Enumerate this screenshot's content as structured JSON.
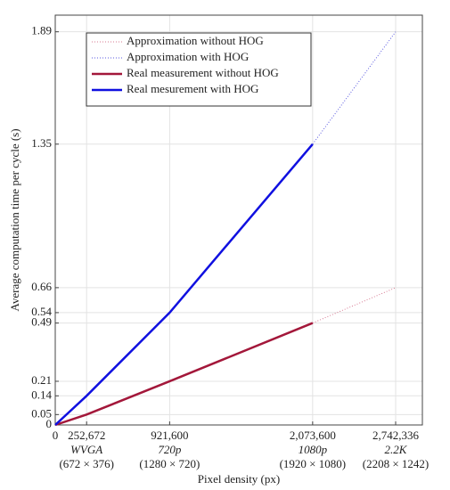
{
  "chart_data": {
    "type": "line",
    "x_label": "Pixel density (px)",
    "y_label": "Average computation time per cycle (s)",
    "xlim": [
      0,
      2957700
    ],
    "ylim": [
      0,
      1.97
    ],
    "xticks": [
      0,
      {
        "value": 252672,
        "label": "252,672",
        "name": "WVGA",
        "size": "(672 × 376)"
      },
      {
        "value": 921600,
        "label": "921,600",
        "name": "720p",
        "size": "(1280 × 720)"
      },
      {
        "value": 2073600,
        "label": "2,073,600",
        "name": "1080p",
        "size": "(1920 × 1080)"
      },
      {
        "value": 2742336,
        "label": "2,742,336",
        "name": "2.2K",
        "size": "(2208 × 1242)"
      }
    ],
    "yticks": [
      0,
      0.05,
      0.14,
      0.21,
      0.49,
      0.54,
      0.66,
      1.35,
      1.89
    ],
    "grid": true,
    "legend": "upper-left",
    "series": [
      {
        "name": "Approximation without HOG",
        "color": "#d77a92",
        "style": "dotted",
        "x": [
          2073600,
          2742336
        ],
        "values": [
          0.49,
          0.66
        ]
      },
      {
        "name": "Approximation with HOG",
        "color": "#5a5ae0",
        "style": "dotted",
        "x": [
          2073600,
          2742336
        ],
        "values": [
          1.35,
          1.89
        ]
      },
      {
        "name": "Real measurement without HOG",
        "color": "#a3173a",
        "style": "solid",
        "x": [
          0,
          252672,
          921600,
          2073600
        ],
        "values": [
          0,
          0.05,
          0.21,
          0.49
        ]
      },
      {
        "name": "Real mesurement with HOG",
        "color": "#1010e0",
        "style": "solid",
        "x": [
          0,
          252672,
          921600,
          2073600
        ],
        "values": [
          0,
          0.14,
          0.54,
          1.35
        ]
      }
    ]
  }
}
